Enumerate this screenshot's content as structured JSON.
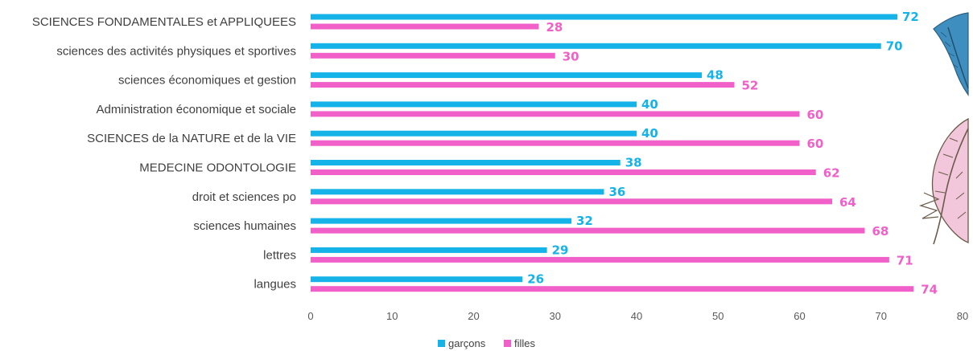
{
  "chart_data": {
    "type": "bar",
    "orientation": "horizontal",
    "categories": [
      "SCIENCES FONDAMENTALES et APPLIQUEES",
      "sciences des activités physiques et sportives",
      "sciences économiques et gestion",
      "Administration économique et sociale",
      "SCIENCES de la NATURE et de la VIE",
      "MEDECINE ODONTOLOGIE",
      "droit et sciences po",
      "sciences humaines",
      "lettres",
      "langues"
    ],
    "series": [
      {
        "name": "garçons",
        "color": "#16B3E8",
        "values": [
          72,
          70,
          48,
          40,
          40,
          38,
          36,
          32,
          29,
          26
        ]
      },
      {
        "name": "filles",
        "color": "#F060C8",
        "values": [
          28,
          30,
          52,
          60,
          60,
          62,
          64,
          68,
          71,
          74
        ]
      }
    ],
    "xlim": [
      0,
      80
    ],
    "xticks": [
      0,
      10,
      20,
      30,
      40,
      50,
      60,
      70,
      80
    ],
    "grid": false,
    "legend_position": "bottom",
    "data_labels": true
  },
  "decoration": {
    "icon": "feather-quill-icon",
    "colors": [
      "#3E8FC0",
      "#E8A9C7",
      "#6B5A4A"
    ]
  }
}
